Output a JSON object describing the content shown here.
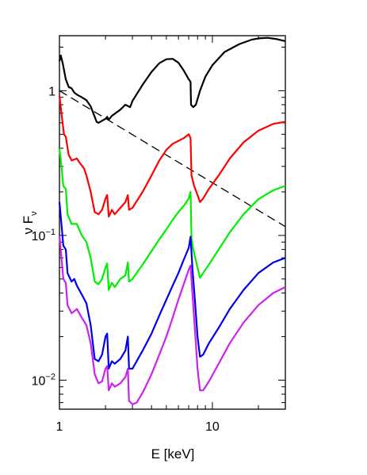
{
  "chart_data": {
    "type": "line",
    "xlabel": "E [keV]",
    "ylabel": "ν F",
    "ylabel_sub": "ν",
    "x_scale": "log",
    "y_scale": "log",
    "xlim": [
      1,
      30
    ],
    "ylim": [
      0.0063,
      2.4
    ],
    "x_ticks": [
      {
        "value": 1,
        "label": "1"
      },
      {
        "value": 10,
        "label": "10"
      }
    ],
    "y_ticks": [
      {
        "value": 1,
        "label": "1",
        "sup": ""
      },
      {
        "value": 0.1,
        "label": "10",
        "sup": "−1"
      },
      {
        "value": 0.01,
        "label": "10",
        "sup": "−2"
      }
    ],
    "grid": false,
    "legend": "none",
    "series": [
      {
        "color": "#000000",
        "dash": "",
        "stroke_width": 2.2,
        "points": [
          [
            1.0,
            1.6
          ],
          [
            1.02,
            1.75
          ],
          [
            1.05,
            1.55
          ],
          [
            1.1,
            1.2
          ],
          [
            1.15,
            1.06
          ],
          [
            1.2,
            1.04
          ],
          [
            1.25,
            0.97
          ],
          [
            1.3,
            0.94
          ],
          [
            1.4,
            0.9
          ],
          [
            1.5,
            0.86
          ],
          [
            1.6,
            0.78
          ],
          [
            1.7,
            0.66
          ],
          [
            1.75,
            0.61
          ],
          [
            1.8,
            0.6
          ],
          [
            1.9,
            0.62
          ],
          [
            2.0,
            0.64
          ],
          [
            2.05,
            0.66
          ],
          [
            2.1,
            0.63
          ],
          [
            2.2,
            0.67
          ],
          [
            2.5,
            0.74
          ],
          [
            2.7,
            0.8
          ],
          [
            2.9,
            0.77
          ],
          [
            3.0,
            0.85
          ],
          [
            3.5,
            1.1
          ],
          [
            4.0,
            1.35
          ],
          [
            4.5,
            1.55
          ],
          [
            5.0,
            1.65
          ],
          [
            5.5,
            1.66
          ],
          [
            6.0,
            1.56
          ],
          [
            6.5,
            1.38
          ],
          [
            7.0,
            1.2
          ],
          [
            7.2,
            1.15
          ],
          [
            7.25,
            0.8
          ],
          [
            7.5,
            0.77
          ],
          [
            7.8,
            0.8
          ],
          [
            8.3,
            1.0
          ],
          [
            9.0,
            1.25
          ],
          [
            10.0,
            1.5
          ],
          [
            12.0,
            1.85
          ],
          [
            15.0,
            2.1
          ],
          [
            18.0,
            2.25
          ],
          [
            20.0,
            2.3
          ],
          [
            23.0,
            2.32
          ],
          [
            26.0,
            2.28
          ],
          [
            30.0,
            2.2
          ]
        ]
      },
      {
        "color": "#000000",
        "dash": "11,6",
        "stroke_width": 1.3,
        "points": [
          [
            1.0,
            1.0
          ],
          [
            30.0,
            0.115
          ]
        ]
      },
      {
        "color": "#ff0000",
        "dash": "",
        "stroke_width": 2.2,
        "points": [
          [
            1.0,
            0.92
          ],
          [
            1.03,
            0.7
          ],
          [
            1.07,
            0.5
          ],
          [
            1.1,
            0.48
          ],
          [
            1.15,
            0.36
          ],
          [
            1.2,
            0.33
          ],
          [
            1.3,
            0.34
          ],
          [
            1.35,
            0.32
          ],
          [
            1.45,
            0.29
          ],
          [
            1.5,
            0.26
          ],
          [
            1.6,
            0.2
          ],
          [
            1.7,
            0.145
          ],
          [
            1.8,
            0.14
          ],
          [
            1.9,
            0.15
          ],
          [
            2.0,
            0.18
          ],
          [
            2.05,
            0.19
          ],
          [
            2.1,
            0.135
          ],
          [
            2.2,
            0.15
          ],
          [
            2.3,
            0.14
          ],
          [
            2.5,
            0.155
          ],
          [
            2.7,
            0.17
          ],
          [
            2.8,
            0.19
          ],
          [
            2.85,
            0.15
          ],
          [
            3.0,
            0.155
          ],
          [
            3.5,
            0.2
          ],
          [
            4.0,
            0.26
          ],
          [
            4.5,
            0.33
          ],
          [
            5.0,
            0.39
          ],
          [
            5.5,
            0.43
          ],
          [
            6.0,
            0.45
          ],
          [
            6.5,
            0.47
          ],
          [
            7.0,
            0.5
          ],
          [
            7.2,
            0.47
          ],
          [
            7.3,
            0.26
          ],
          [
            7.6,
            0.22
          ],
          [
            8.0,
            0.19
          ],
          [
            8.3,
            0.17
          ],
          [
            8.7,
            0.18
          ],
          [
            9.5,
            0.21
          ],
          [
            11.0,
            0.26
          ],
          [
            13.0,
            0.34
          ],
          [
            16.0,
            0.44
          ],
          [
            20.0,
            0.53
          ],
          [
            25.0,
            0.59
          ],
          [
            30.0,
            0.61
          ]
        ]
      },
      {
        "color": "#00ee00",
        "dash": "",
        "stroke_width": 2.2,
        "points": [
          [
            1.0,
            0.4
          ],
          [
            1.03,
            0.3
          ],
          [
            1.06,
            0.22
          ],
          [
            1.1,
            0.21
          ],
          [
            1.13,
            0.14
          ],
          [
            1.2,
            0.12
          ],
          [
            1.3,
            0.12
          ],
          [
            1.4,
            0.1
          ],
          [
            1.5,
            0.09
          ],
          [
            1.6,
            0.07
          ],
          [
            1.7,
            0.048
          ],
          [
            1.8,
            0.046
          ],
          [
            1.9,
            0.05
          ],
          [
            2.0,
            0.06
          ],
          [
            2.05,
            0.064
          ],
          [
            2.1,
            0.042
          ],
          [
            2.2,
            0.047
          ],
          [
            2.3,
            0.044
          ],
          [
            2.5,
            0.05
          ],
          [
            2.7,
            0.053
          ],
          [
            2.8,
            0.065
          ],
          [
            2.85,
            0.048
          ],
          [
            3.0,
            0.05
          ],
          [
            3.5,
            0.063
          ],
          [
            4.0,
            0.078
          ],
          [
            4.5,
            0.094
          ],
          [
            5.0,
            0.11
          ],
          [
            5.5,
            0.128
          ],
          [
            6.0,
            0.145
          ],
          [
            6.5,
            0.16
          ],
          [
            7.0,
            0.18
          ],
          [
            7.2,
            0.2
          ],
          [
            7.3,
            0.095
          ],
          [
            7.5,
            0.08
          ],
          [
            8.0,
            0.06
          ],
          [
            8.3,
            0.051
          ],
          [
            8.7,
            0.055
          ],
          [
            9.5,
            0.063
          ],
          [
            11.0,
            0.08
          ],
          [
            13.0,
            0.105
          ],
          [
            16.0,
            0.14
          ],
          [
            20.0,
            0.178
          ],
          [
            25.0,
            0.205
          ],
          [
            30.0,
            0.22
          ]
        ]
      },
      {
        "color": "#0000ee",
        "dash": "",
        "stroke_width": 2.2,
        "points": [
          [
            1.0,
            0.17
          ],
          [
            1.03,
            0.12
          ],
          [
            1.06,
            0.085
          ],
          [
            1.1,
            0.08
          ],
          [
            1.13,
            0.055
          ],
          [
            1.2,
            0.048
          ],
          [
            1.25,
            0.05
          ],
          [
            1.3,
            0.045
          ],
          [
            1.4,
            0.039
          ],
          [
            1.5,
            0.034
          ],
          [
            1.6,
            0.024
          ],
          [
            1.7,
            0.014
          ],
          [
            1.8,
            0.0135
          ],
          [
            1.9,
            0.015
          ],
          [
            2.0,
            0.02
          ],
          [
            2.05,
            0.021
          ],
          [
            2.1,
            0.012
          ],
          [
            2.2,
            0.0135
          ],
          [
            2.3,
            0.013
          ],
          [
            2.5,
            0.014
          ],
          [
            2.7,
            0.016
          ],
          [
            2.8,
            0.02
          ],
          [
            2.85,
            0.012
          ],
          [
            3.0,
            0.012
          ],
          [
            3.5,
            0.016
          ],
          [
            4.0,
            0.021
          ],
          [
            4.5,
            0.028
          ],
          [
            5.0,
            0.036
          ],
          [
            5.5,
            0.045
          ],
          [
            6.0,
            0.055
          ],
          [
            6.5,
            0.068
          ],
          [
            7.0,
            0.082
          ],
          [
            7.2,
            0.098
          ],
          [
            7.4,
            0.06
          ],
          [
            7.7,
            0.035
          ],
          [
            8.0,
            0.02
          ],
          [
            8.3,
            0.0145
          ],
          [
            8.7,
            0.015
          ],
          [
            9.5,
            0.018
          ],
          [
            11.0,
            0.023
          ],
          [
            13.0,
            0.031
          ],
          [
            16.0,
            0.042
          ],
          [
            20.0,
            0.055
          ],
          [
            25.0,
            0.065
          ],
          [
            30.0,
            0.07
          ]
        ]
      },
      {
        "color": "#cc22ee",
        "dash": "",
        "stroke_width": 2.2,
        "points": [
          [
            1.0,
            0.1
          ],
          [
            1.03,
            0.07
          ],
          [
            1.06,
            0.05
          ],
          [
            1.1,
            0.047
          ],
          [
            1.13,
            0.033
          ],
          [
            1.2,
            0.029
          ],
          [
            1.3,
            0.031
          ],
          [
            1.4,
            0.027
          ],
          [
            1.5,
            0.024
          ],
          [
            1.6,
            0.018
          ],
          [
            1.7,
            0.011
          ],
          [
            1.8,
            0.0095
          ],
          [
            1.9,
            0.0098
          ],
          [
            2.0,
            0.012
          ],
          [
            2.05,
            0.0125
          ],
          [
            2.1,
            0.0085
          ],
          [
            2.2,
            0.0095
          ],
          [
            2.3,
            0.009
          ],
          [
            2.5,
            0.0095
          ],
          [
            2.7,
            0.0105
          ],
          [
            2.8,
            0.012
          ],
          [
            2.85,
            0.0072
          ],
          [
            3.0,
            0.0068
          ],
          [
            3.2,
            0.007
          ],
          [
            3.5,
            0.0082
          ],
          [
            4.0,
            0.011
          ],
          [
            4.5,
            0.015
          ],
          [
            5.0,
            0.02
          ],
          [
            5.5,
            0.027
          ],
          [
            6.0,
            0.036
          ],
          [
            6.5,
            0.046
          ],
          [
            7.0,
            0.058
          ],
          [
            7.2,
            0.062
          ],
          [
            7.4,
            0.04
          ],
          [
            7.7,
            0.022
          ],
          [
            8.0,
            0.012
          ],
          [
            8.3,
            0.0085
          ],
          [
            8.7,
            0.0085
          ],
          [
            9.5,
            0.0098
          ],
          [
            11.0,
            0.013
          ],
          [
            13.0,
            0.018
          ],
          [
            16.0,
            0.025
          ],
          [
            20.0,
            0.033
          ],
          [
            25.0,
            0.04
          ],
          [
            30.0,
            0.044
          ]
        ]
      }
    ]
  }
}
